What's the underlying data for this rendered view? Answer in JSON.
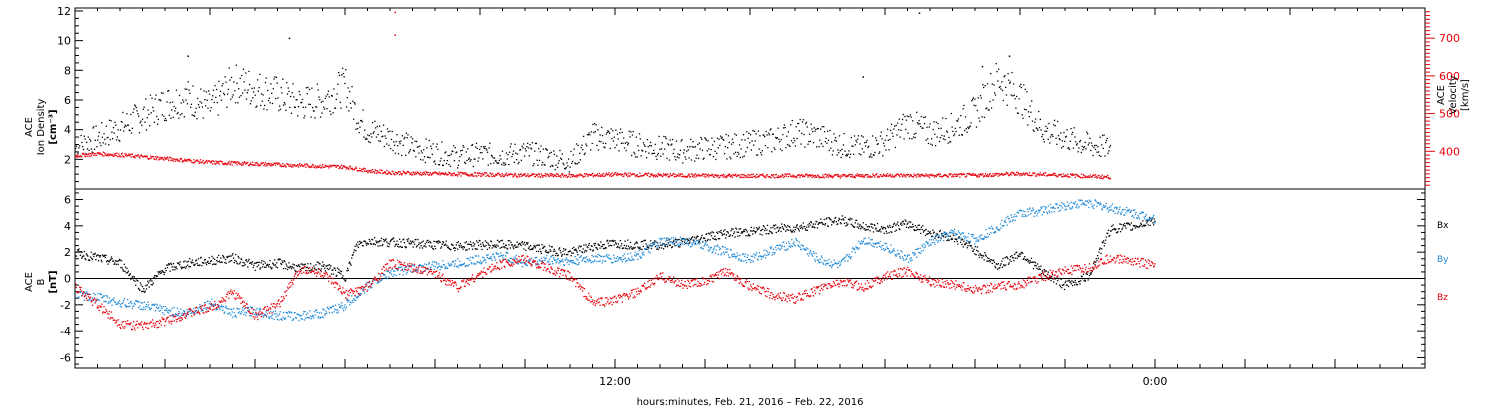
{
  "colors": {
    "black": "#000000",
    "red": "#e8000b",
    "blue": "#1f8ad8"
  },
  "chart_data": [
    {
      "type": "scatter",
      "panel": "top",
      "ylabel_left": [
        "ACE",
        "Ion Density",
        "[cm⁻³]"
      ],
      "ylabel_right": [
        "ACE",
        "Velocity",
        "[km/s]"
      ],
      "x_range_hours": [
        -12,
        48
      ],
      "ylim_left": [
        0,
        12.2
      ],
      "yticks_left": [
        2,
        4,
        6,
        8,
        10,
        12
      ],
      "ylim_right": [
        300,
        780
      ],
      "yticks_right": [
        400,
        500,
        600,
        700
      ],
      "series": [
        {
          "axis": "left",
          "color": "#000000",
          "values": [
            [
              -12,
              2.8
            ],
            [
              -11.5,
              3.2
            ],
            [
              -11,
              3.5
            ],
            [
              -10,
              4.2
            ],
            [
              -9,
              5.0
            ],
            [
              -8,
              5.8
            ],
            [
              -7,
              6.2
            ],
            [
              -6,
              5.5
            ],
            [
              -5,
              7.2
            ],
            [
              -4,
              6.8
            ],
            [
              -3,
              6.4
            ],
            [
              -2,
              5.8
            ],
            [
              -1,
              6.0
            ],
            [
              0,
              7.0
            ],
            [
              0.5,
              5.0
            ],
            [
              1,
              4.0
            ],
            [
              2,
              3.5
            ],
            [
              3,
              2.8
            ],
            [
              4,
              2.5
            ],
            [
              5,
              2.2
            ],
            [
              6,
              2.4
            ],
            [
              7,
              2.3
            ],
            [
              8,
              2.5
            ],
            [
              9,
              2.2
            ],
            [
              10,
              1.9
            ],
            [
              11,
              3.6
            ],
            [
              12,
              3.4
            ],
            [
              13,
              3.0
            ],
            [
              14,
              2.8
            ],
            [
              15,
              2.6
            ],
            [
              16,
              2.8
            ],
            [
              17,
              2.9
            ],
            [
              18,
              3.1
            ],
            [
              19,
              3.3
            ],
            [
              20,
              3.9
            ],
            [
              21,
              3.6
            ],
            [
              22,
              3.0
            ],
            [
              23,
              2.8
            ],
            [
              24,
              3.2
            ],
            [
              25,
              4.5
            ],
            [
              26,
              3.8
            ],
            [
              27,
              4.2
            ],
            [
              28,
              5.2
            ],
            [
              29,
              7.5
            ],
            [
              30,
              6.2
            ],
            [
              31,
              4.0
            ],
            [
              32,
              3.5
            ],
            [
              33,
              3.0
            ],
            [
              34,
              2.8
            ]
          ]
        },
        {
          "axis": "right",
          "color": "#e8000b",
          "values": [
            [
              -12,
              390
            ],
            [
              -11,
              395
            ],
            [
              -10,
              392
            ],
            [
              -8,
              382
            ],
            [
              -6,
              372
            ],
            [
              -4,
              368
            ],
            [
              -2,
              364
            ],
            [
              0,
              360
            ],
            [
              1,
              350
            ],
            [
              2,
              345
            ],
            [
              4,
              342
            ],
            [
              6,
              340
            ],
            [
              8,
              338
            ],
            [
              10,
              337
            ],
            [
              12,
              340
            ],
            [
              14,
              338
            ],
            [
              16,
              337
            ],
            [
              18,
              336
            ],
            [
              20,
              337
            ],
            [
              22,
              336
            ],
            [
              24,
              338
            ],
            [
              26,
              337
            ],
            [
              28,
              338
            ],
            [
              30,
              342
            ],
            [
              32,
              338
            ],
            [
              34,
              333
            ]
          ]
        }
      ]
    },
    {
      "type": "scatter",
      "panel": "bottom",
      "ylabel_left": [
        "ACE",
        "B",
        "[nT]"
      ],
      "x_range_hours": [
        -12,
        48
      ],
      "ylim": [
        -6.8,
        6.8
      ],
      "yticks": [
        -6,
        -4,
        -2,
        0,
        2,
        4,
        6
      ],
      "zero_line": true,
      "xlabel": "hours:minutes, Feb. 21, 2016 – Feb. 22, 2016",
      "x_tick_labels": [
        {
          "hour": 12,
          "label": "12:00"
        },
        {
          "hour": 36,
          "label": "0:00"
        }
      ],
      "series": [
        {
          "name": "Bx",
          "color": "#000000",
          "values": [
            [
              -12,
              2.0
            ],
            [
              -11,
              1.6
            ],
            [
              -10,
              1.2
            ],
            [
              -9,
              -0.8
            ],
            [
              -8,
              0.8
            ],
            [
              -7,
              1.2
            ],
            [
              -6,
              1.4
            ],
            [
              -5,
              1.6
            ],
            [
              -4,
              1.0
            ],
            [
              -3,
              1.2
            ],
            [
              -2,
              0.8
            ],
            [
              -1,
              1.0
            ],
            [
              0,
              0.2
            ],
            [
              0.5,
              2.6
            ],
            [
              1,
              2.9
            ],
            [
              2,
              2.8
            ],
            [
              3,
              2.7
            ],
            [
              4,
              2.6
            ],
            [
              5,
              2.5
            ],
            [
              6,
              2.6
            ],
            [
              7,
              2.6
            ],
            [
              8,
              2.5
            ],
            [
              9,
              2.2
            ],
            [
              10,
              2.0
            ],
            [
              11,
              2.5
            ],
            [
              12,
              2.7
            ],
            [
              13,
              2.6
            ],
            [
              14,
              2.6
            ],
            [
              15,
              2.8
            ],
            [
              16,
              3.2
            ],
            [
              17,
              3.5
            ],
            [
              18,
              3.6
            ],
            [
              19,
              3.8
            ],
            [
              20,
              3.9
            ],
            [
              21,
              4.2
            ],
            [
              22,
              4.5
            ],
            [
              23,
              4.0
            ],
            [
              24,
              3.8
            ],
            [
              25,
              4.2
            ],
            [
              26,
              3.5
            ],
            [
              27,
              3.2
            ],
            [
              28,
              2.2
            ],
            [
              29,
              1.0
            ],
            [
              30,
              2.0
            ],
            [
              31,
              0.5
            ],
            [
              32,
              -0.5
            ],
            [
              33,
              0.2
            ],
            [
              34,
              3.8
            ],
            [
              35,
              4.0
            ],
            [
              36,
              4.5
            ]
          ]
        },
        {
          "name": "By",
          "color": "#1f8ad8",
          "values": [
            [
              -12,
              -1.2
            ],
            [
              -11,
              -1.4
            ],
            [
              -10,
              -1.8
            ],
            [
              -9,
              -2.0
            ],
            [
              -8,
              -2.4
            ],
            [
              -7,
              -2.6
            ],
            [
              -6,
              -1.8
            ],
            [
              -5,
              -2.6
            ],
            [
              -4,
              -2.4
            ],
            [
              -3,
              -2.8
            ],
            [
              -2,
              -2.8
            ],
            [
              -1,
              -2.6
            ],
            [
              0,
              -2.0
            ],
            [
              1,
              -0.5
            ],
            [
              2,
              0.5
            ],
            [
              3,
              0.8
            ],
            [
              4,
              1.0
            ],
            [
              5,
              1.2
            ],
            [
              6,
              1.5
            ],
            [
              7,
              1.8
            ],
            [
              8,
              1.2
            ],
            [
              9,
              1.5
            ],
            [
              10,
              1.3
            ],
            [
              11,
              1.6
            ],
            [
              12,
              1.5
            ],
            [
              13,
              1.8
            ],
            [
              14,
              2.8
            ],
            [
              15,
              2.9
            ],
            [
              16,
              2.5
            ],
            [
              17,
              2.0
            ],
            [
              18,
              1.5
            ],
            [
              19,
              2.2
            ],
            [
              20,
              2.8
            ],
            [
              21,
              1.5
            ],
            [
              22,
              1.0
            ],
            [
              23,
              3.0
            ],
            [
              24,
              2.5
            ],
            [
              25,
              1.5
            ],
            [
              26,
              2.8
            ],
            [
              27,
              3.5
            ],
            [
              28,
              3.0
            ],
            [
              29,
              4.0
            ],
            [
              30,
              5.0
            ],
            [
              31,
              5.2
            ],
            [
              32,
              5.6
            ],
            [
              33,
              5.8
            ],
            [
              34,
              5.4
            ],
            [
              35,
              5.0
            ],
            [
              36,
              4.6
            ]
          ]
        },
        {
          "name": "Bz",
          "color": "#e8000b",
          "values": [
            [
              -12,
              -0.6
            ],
            [
              -11,
              -2.0
            ],
            [
              -10,
              -3.4
            ],
            [
              -9,
              -3.6
            ],
            [
              -8,
              -3.2
            ],
            [
              -7,
              -2.6
            ],
            [
              -6,
              -2.2
            ],
            [
              -5,
              -1.0
            ],
            [
              -4,
              -2.8
            ],
            [
              -3,
              -2.0
            ],
            [
              -2,
              0.8
            ],
            [
              -1,
              0.4
            ],
            [
              0,
              -1.2
            ],
            [
              1,
              -0.6
            ],
            [
              2,
              1.2
            ],
            [
              3,
              0.8
            ],
            [
              4,
              0.4
            ],
            [
              5,
              -0.6
            ],
            [
              6,
              0.4
            ],
            [
              7,
              1.2
            ],
            [
              8,
              1.5
            ],
            [
              9,
              0.8
            ],
            [
              10,
              0.2
            ],
            [
              11,
              -1.8
            ],
            [
              12,
              -1.6
            ],
            [
              13,
              -1.0
            ],
            [
              14,
              0.2
            ],
            [
              15,
              -0.4
            ],
            [
              16,
              -0.2
            ],
            [
              17,
              0.6
            ],
            [
              18,
              -0.6
            ],
            [
              19,
              -1.2
            ],
            [
              20,
              -1.5
            ],
            [
              21,
              -0.8
            ],
            [
              22,
              -0.2
            ],
            [
              23,
              -0.6
            ],
            [
              24,
              0.2
            ],
            [
              25,
              0.6
            ],
            [
              26,
              -0.2
            ],
            [
              27,
              -0.4
            ],
            [
              28,
              -0.8
            ],
            [
              29,
              -0.6
            ],
            [
              30,
              -0.4
            ],
            [
              31,
              0.2
            ],
            [
              32,
              0.6
            ],
            [
              33,
              0.8
            ],
            [
              34,
              1.6
            ],
            [
              35,
              1.4
            ],
            [
              36,
              1.0
            ]
          ]
        }
      ]
    }
  ]
}
